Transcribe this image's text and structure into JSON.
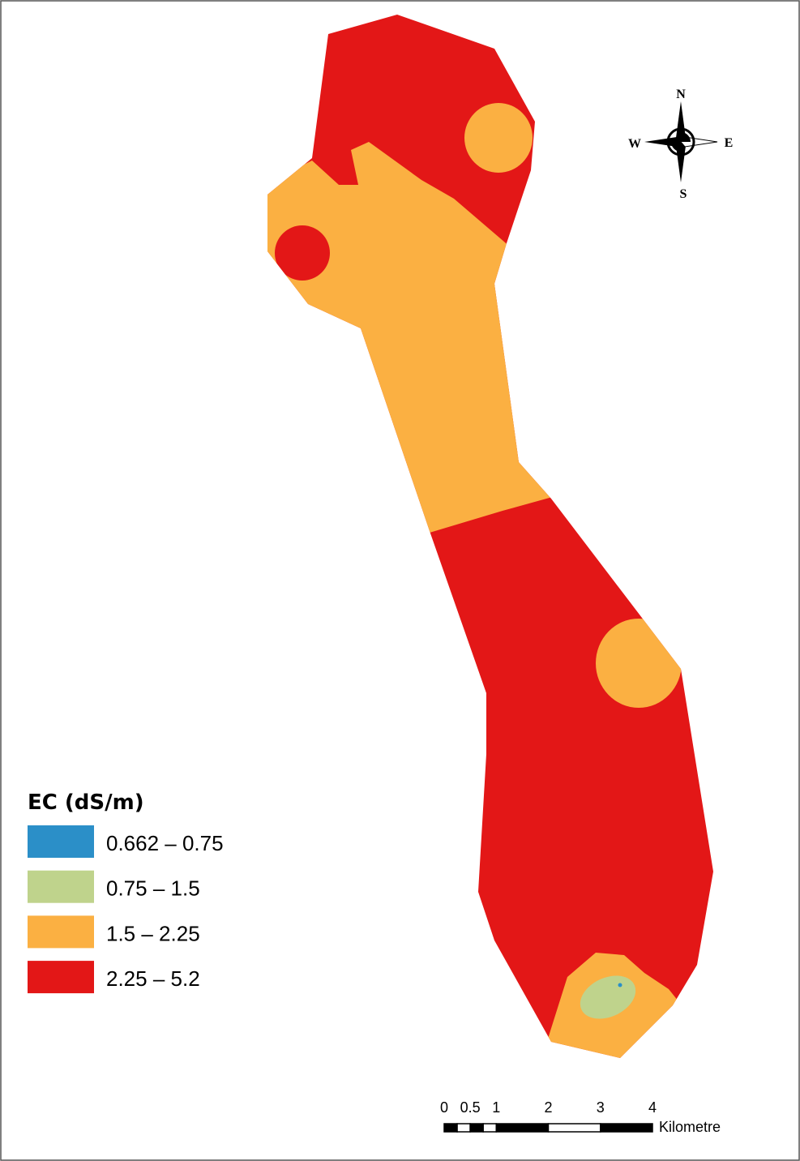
{
  "legend": {
    "title": "EC (dS/m)",
    "items": [
      {
        "label": "0.662 – 0.75",
        "color": "#2b8fc8"
      },
      {
        "label": "0.75 – 1.5",
        "color": "#bfd38c"
      },
      {
        "label": "1.5 – 2.25",
        "color": "#fbb042"
      },
      {
        "label": "2.25 – 5.2",
        "color": "#e31717"
      }
    ]
  },
  "north_arrow": {
    "n": "N",
    "s": "S",
    "e": "E",
    "w": "W"
  },
  "scale_bar": {
    "ticks": [
      0,
      0.5,
      1,
      2,
      3,
      4
    ],
    "unit": "Kilometre"
  }
}
